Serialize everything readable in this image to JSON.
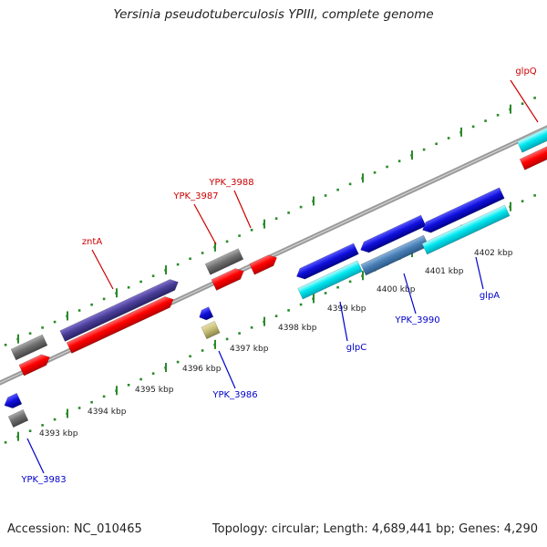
{
  "title": "Yersinia pseudotuberculosis YPIII, complete genome",
  "footer": {
    "accession": "Accession: NC_010465",
    "summary": "Topology: circular; Length: 4,689,441 bp; Genes: 4,290"
  },
  "colors": {
    "axis": "#888888",
    "ticks": "#2a8a2a",
    "forward_label": "#cc0000",
    "reverse_label": "#0000cc",
    "cds_red": "#ff0000",
    "cds_blue": "#1010dd",
    "cds_cyan": "#00e8f0",
    "cds_grey": "#707070",
    "cds_purple": "#4a3f99",
    "cds_steel": "#4a7fb5",
    "cds_khaki": "#c8c078"
  },
  "scale": {
    "ticks": [
      {
        "label": "4393 kbp",
        "kbp": 4393
      },
      {
        "label": "4394 kbp",
        "kbp": 4394
      },
      {
        "label": "4395 kbp",
        "kbp": 4395
      },
      {
        "label": "4396 kbp",
        "kbp": 4396
      },
      {
        "label": "4397 kbp",
        "kbp": 4397
      },
      {
        "label": "4398 kbp",
        "kbp": 4398
      },
      {
        "label": "4399 kbp",
        "kbp": 4399
      },
      {
        "label": "4400 kbp",
        "kbp": 4400
      },
      {
        "label": "4401 kbp",
        "kbp": 4401
      },
      {
        "label": "4402 kbp",
        "kbp": 4402
      }
    ]
  },
  "gene_labels": [
    {
      "name": "glpQ",
      "strand": "forward"
    },
    {
      "name": "YPK_3988",
      "strand": "forward"
    },
    {
      "name": "YPK_3987",
      "strand": "forward"
    },
    {
      "name": "zntA",
      "strand": "forward"
    },
    {
      "name": "YPK_3983",
      "strand": "reverse"
    },
    {
      "name": "YPK_3986",
      "strand": "reverse"
    },
    {
      "name": "glpC",
      "strand": "reverse"
    },
    {
      "name": "YPK_3990",
      "strand": "reverse"
    },
    {
      "name": "glpA",
      "strand": "reverse"
    }
  ]
}
